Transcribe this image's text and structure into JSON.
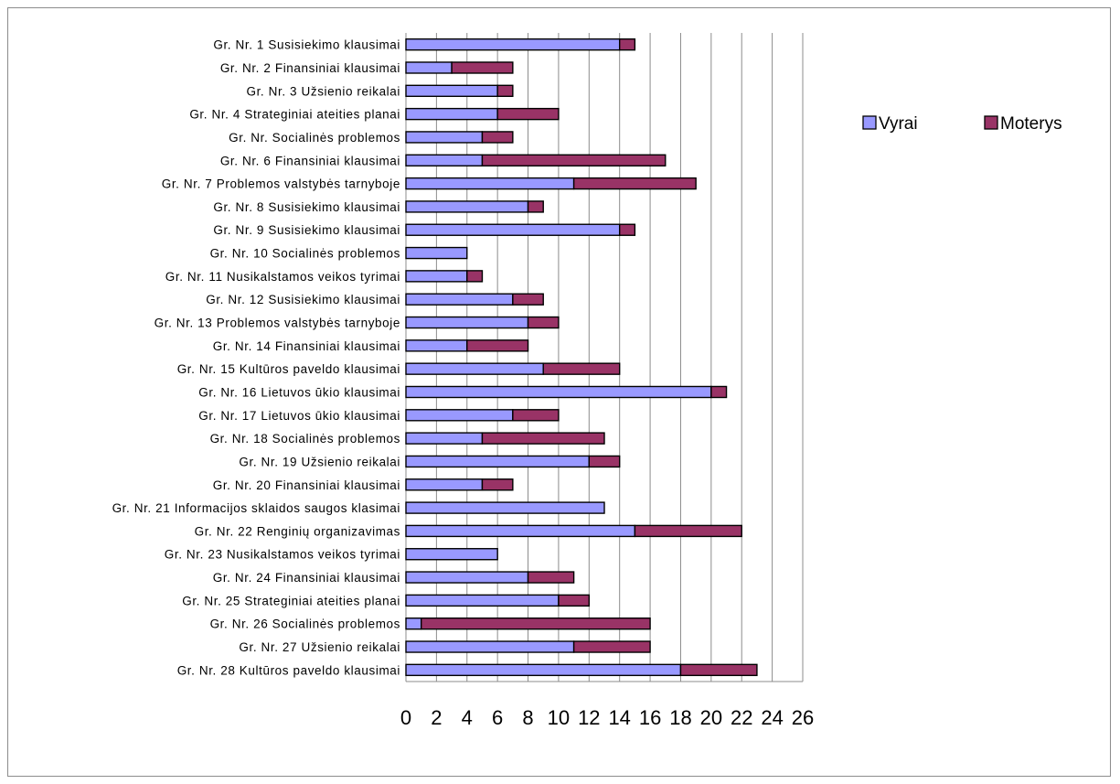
{
  "chart_data": {
    "type": "bar",
    "orientation": "horizontal",
    "stacked": true,
    "categories": [
      "Gr. Nr. 1 Susisiekimo klausimai",
      "Gr. Nr. 2 Finansiniai klausimai",
      "Gr. Nr. 3  Užsienio reikalai",
      "Gr. Nr. 4 Strateginiai ateities planai",
      "Gr. Nr. Socialinės problemos",
      "Gr. Nr. 6 Finansiniai klausimai",
      "Gr. Nr. 7 Problemos valstybės tarnyboje",
      "Gr. Nr. 8 Susisiekimo klausimai",
      "Gr. Nr. 9 Susisiekimo klausimai",
      "Gr. Nr. 10 Socialinės problemos",
      "Gr. Nr. 11 Nusikalstamos veikos tyrimai",
      "Gr. Nr. 12 Susisiekimo klausimai",
      "Gr. Nr. 13 Problemos valstybės tarnyboje",
      "Gr. Nr. 14 Finansiniai klausimai",
      "Gr. Nr. 15 Kultūros paveldo klausimai",
      "Gr. Nr. 16  Lietuvos ūkio klausimai",
      "Gr. Nr. 17 Lietuvos ūkio klausimai",
      "Gr. Nr. 18 Socialinės problemos",
      "Gr. Nr. 19  Užsienio reikalai",
      "Gr. Nr. 20 Finansiniai klausimai",
      "Gr. Nr. 21 Informacijos sklaidos saugos klasimai",
      "Gr. Nr. 22 Renginių organizavimas",
      "Gr. Nr. 23 Nusikalstamos veikos tyrimai",
      "Gr. Nr. 24 Finansiniai klausimai",
      "Gr. Nr. 25 Strateginiai ateities planai",
      "Gr. Nr. 26 Socialinės problemos",
      "Gr. Nr. 27 Užsienio reikalai",
      "Gr. Nr. 28 Kultūros paveldo klausimai"
    ],
    "series": [
      {
        "name": "Vyrai",
        "color": "#9999ff",
        "values": [
          14,
          3,
          6,
          6,
          5,
          5,
          11,
          8,
          14,
          4,
          4,
          7,
          8,
          4,
          9,
          20,
          7,
          5,
          12,
          5,
          13,
          15,
          6,
          8,
          10,
          1,
          11,
          18
        ]
      },
      {
        "name": "Moterys",
        "color": "#993366",
        "values": [
          1,
          4,
          1,
          4,
          2,
          12,
          8,
          1,
          1,
          0,
          1,
          2,
          2,
          4,
          5,
          1,
          3,
          8,
          2,
          2,
          0,
          7,
          0,
          3,
          2,
          15,
          5,
          5
        ]
      }
    ],
    "xticks": [
      0,
      2,
      4,
      6,
      8,
      10,
      12,
      14,
      16,
      18,
      20,
      22,
      24,
      26
    ],
    "xlim": [
      0,
      26
    ],
    "grid": "vertical",
    "legend": "top-right"
  }
}
